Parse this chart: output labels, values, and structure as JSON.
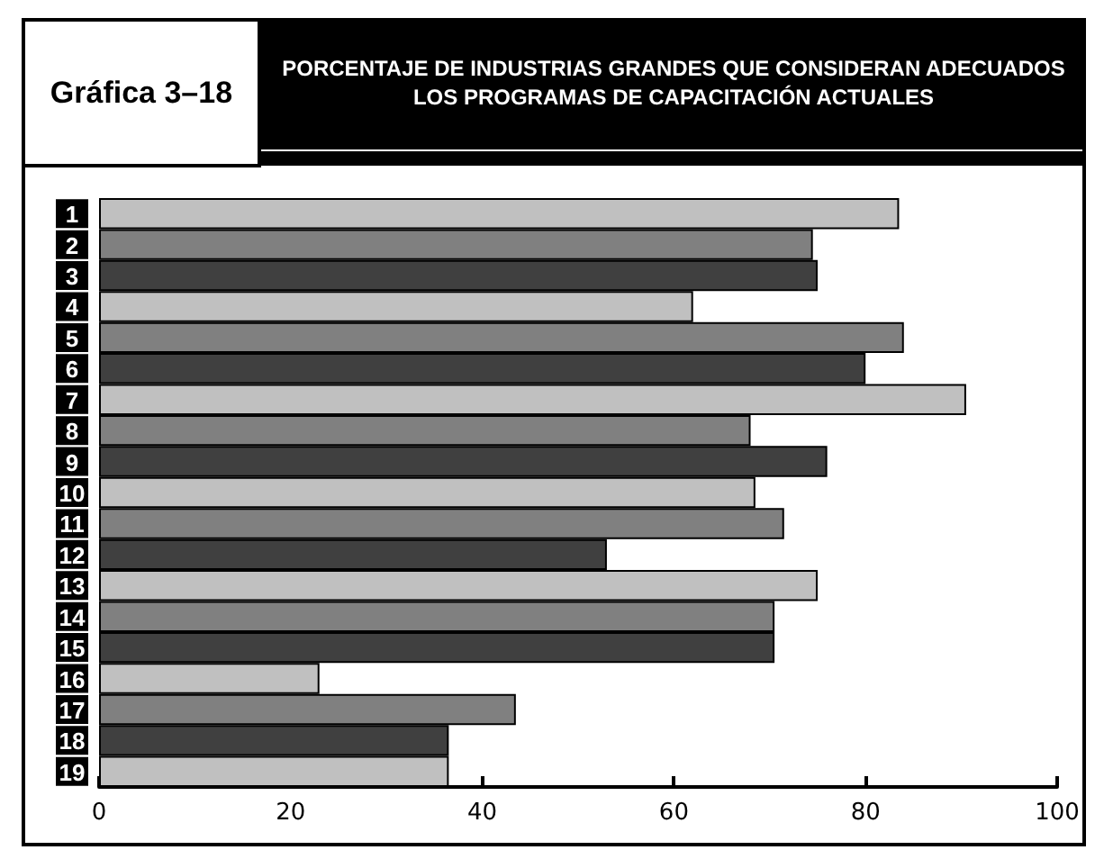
{
  "chart_data": {
    "type": "bar",
    "orientation": "horizontal",
    "title": "PORCENTAJE DE INDUSTRIAS GRANDES QUE CONSIDERAN ADECUADOS LOS PROGRAMAS DE CAPACITACIÓN ACTUALES",
    "subtitle": "Gráfica 3–18",
    "categories": [
      "1",
      "2",
      "3",
      "4",
      "5",
      "6",
      "7",
      "8",
      "9",
      "10",
      "11",
      "12",
      "13",
      "14",
      "15",
      "16",
      "17",
      "18",
      "19"
    ],
    "values": [
      83.5,
      74.5,
      75,
      62,
      84,
      80,
      90.5,
      68,
      76,
      68.5,
      71.5,
      53,
      75,
      70.5,
      70.5,
      23,
      43.5,
      36.5,
      36.5
    ],
    "colors": [
      "#c0c0c0",
      "#808080",
      "#404040",
      "#c0c0c0",
      "#808080",
      "#404040",
      "#c0c0c0",
      "#808080",
      "#404040",
      "#c0c0c0",
      "#808080",
      "#404040",
      "#c0c0c0",
      "#808080",
      "#404040",
      "#c0c0c0",
      "#808080",
      "#404040",
      "#c0c0c0"
    ],
    "xlim": [
      0,
      100
    ],
    "xticks": [
      0,
      20,
      40,
      60,
      80,
      100
    ],
    "grid": false
  }
}
